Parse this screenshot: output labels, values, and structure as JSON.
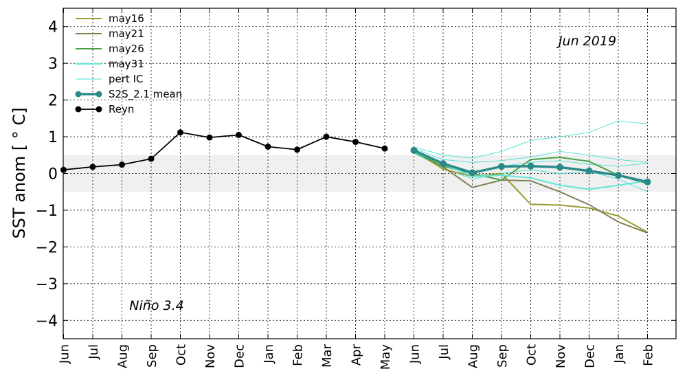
{
  "chart_data": {
    "type": "line",
    "ylabel": "SST anom [$^\\circ$C]",
    "ylabel_text": "SST anom [ ° C]",
    "ylim": [
      -4.5,
      4.5
    ],
    "yticks": [
      -4,
      -3,
      -2,
      -1,
      0,
      1,
      2,
      3,
      4
    ],
    "ytick_labels": [
      "−4",
      "−3",
      "−2",
      "−1",
      "0",
      "1",
      "2",
      "3",
      "4"
    ],
    "x_labels": [
      "Jun",
      "Jul",
      "Aug",
      "Sep",
      "Oct",
      "Nov",
      "Dec",
      "Jan",
      "Feb",
      "Mar",
      "Apr",
      "May",
      "Jun",
      "Jul",
      "Aug",
      "Sep",
      "Oct",
      "Nov",
      "Dec",
      "Jan",
      "Feb"
    ],
    "xlim": [
      0,
      21
    ],
    "grid": true,
    "neutral_band": [
      -0.5,
      0.5
    ],
    "annotations": {
      "date": "Jun 2019",
      "region": "Niño 3.4"
    },
    "legend": {
      "position": "top-left",
      "entries": [
        "may16",
        "may21",
        "may26",
        "may31",
        "pert IC",
        "S2S_2.1 mean",
        "Reyn"
      ]
    },
    "series": [
      {
        "name": "Reyn",
        "color": "#000000",
        "width": 1.8,
        "markers": true,
        "x": [
          0,
          1,
          2,
          3,
          4,
          5,
          6,
          7,
          8,
          9,
          10,
          11
        ],
        "values": [
          0.1,
          0.18,
          0.24,
          0.4,
          1.12,
          0.98,
          1.05,
          0.73,
          0.65,
          1.0,
          0.86,
          0.68
        ]
      },
      {
        "name": "pert IC",
        "color": "#40e0d0",
        "width": 0.9,
        "markers": false,
        "legend": true,
        "x": [
          12,
          13,
          14,
          15,
          16,
          17,
          18,
          19,
          20
        ],
        "values": [
          0.72,
          0.5,
          0.42,
          0.6,
          0.9,
          1.0,
          1.12,
          1.43,
          1.35
        ]
      },
      {
        "name": "pert IC",
        "color": "#40e0d0",
        "width": 0.9,
        "markers": false,
        "legend": false,
        "x": [
          12,
          13,
          14,
          15,
          16,
          17,
          18,
          19,
          20
        ],
        "values": [
          0.68,
          0.38,
          0.3,
          0.35,
          0.45,
          0.6,
          0.5,
          0.38,
          0.3
        ]
      },
      {
        "name": "pert IC",
        "color": "#40e0d0",
        "width": 0.9,
        "markers": false,
        "legend": false,
        "x": [
          12,
          13,
          14,
          15,
          16,
          17,
          18,
          19,
          20
        ],
        "values": [
          0.62,
          0.2,
          0.05,
          0.2,
          0.3,
          0.35,
          0.25,
          0.2,
          0.28
        ]
      },
      {
        "name": "pert IC",
        "color": "#40e0d0",
        "width": 0.9,
        "markers": false,
        "legend": false,
        "x": [
          12,
          13,
          14,
          15,
          16,
          17,
          18,
          19,
          20
        ],
        "values": [
          0.55,
          0.15,
          -0.15,
          0.0,
          0.1,
          0.0,
          0.05,
          -0.15,
          -0.5
        ]
      },
      {
        "name": "may16",
        "color": "#9a9a30",
        "width": 2,
        "markers": false,
        "legend": true,
        "x": [
          12,
          13,
          14,
          15,
          16,
          17,
          18,
          19,
          20
        ],
        "values": [
          0.62,
          0.12,
          -0.08,
          0.0,
          -0.84,
          -0.86,
          -0.94,
          -1.16,
          -1.6
        ]
      },
      {
        "name": "may21",
        "color": "#808055",
        "width": 2,
        "markers": false,
        "legend": true,
        "x": [
          12,
          13,
          14,
          15,
          16,
          17,
          18,
          19,
          20
        ],
        "values": [
          0.62,
          0.18,
          -0.38,
          -0.18,
          -0.2,
          -0.5,
          -0.85,
          -1.32,
          -1.62
        ]
      },
      {
        "name": "may26",
        "color": "#4aa04a",
        "width": 2,
        "markers": false,
        "legend": true,
        "x": [
          12,
          13,
          14,
          15,
          16,
          17,
          18,
          19,
          20
        ],
        "values": [
          0.58,
          0.2,
          0.0,
          -0.18,
          0.38,
          0.44,
          0.33,
          -0.05,
          -0.28
        ]
      },
      {
        "name": "may31",
        "color": "#5ee8d8",
        "width": 2,
        "markers": false,
        "legend": true,
        "x": [
          12,
          13,
          14,
          15,
          16,
          17,
          18,
          19,
          20
        ],
        "values": [
          0.6,
          0.26,
          -0.08,
          -0.05,
          -0.12,
          -0.32,
          -0.43,
          -0.32,
          -0.2
        ]
      },
      {
        "name": "S2S_2.1 mean",
        "color": "#2a8a8a",
        "width": 3.5,
        "markers": true,
        "legend": true,
        "x": [
          12,
          13,
          14,
          15,
          16,
          17,
          18,
          19,
          20
        ],
        "values": [
          0.63,
          0.27,
          0.02,
          0.19,
          0.2,
          0.17,
          0.07,
          -0.05,
          -0.23
        ]
      }
    ]
  }
}
